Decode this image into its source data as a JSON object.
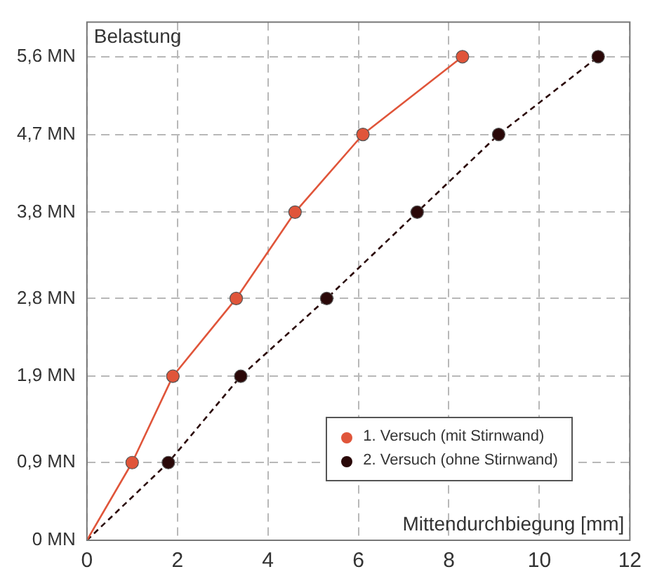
{
  "chart_data": {
    "type": "line",
    "ylabel": "Belastung",
    "xlabel": "Mittendurchbiegung [mm]",
    "series": [
      {
        "name": "1. Versuch (mit Stirnwand)",
        "color": "#e0553a",
        "line_style": "solid",
        "x": [
          0,
          1.0,
          1.9,
          3.3,
          4.6,
          6.1,
          8.3
        ],
        "values": [
          0,
          0.9,
          1.9,
          2.8,
          3.8,
          4.7,
          5.6
        ]
      },
      {
        "name": "2. Versuch (ohne Stirnwand)",
        "color": "#2a0808",
        "line_style": "dashed",
        "x": [
          0,
          1.8,
          3.4,
          5.3,
          7.3,
          9.1,
          11.3
        ],
        "values": [
          0,
          0.9,
          1.9,
          2.8,
          3.8,
          4.7,
          5.6
        ]
      }
    ],
    "xlim": [
      0,
      12
    ],
    "xticks": [
      0,
      2,
      4,
      6,
      8,
      10,
      12
    ],
    "ylim": [
      0,
      6.0
    ],
    "yticks": [
      {
        "value": 0,
        "label": "0 MN"
      },
      {
        "value": 0.9,
        "label": "0,9 MN"
      },
      {
        "value": 1.9,
        "label": "1,9 MN"
      },
      {
        "value": 2.8,
        "label": "2,8 MN"
      },
      {
        "value": 3.8,
        "label": "3,8 MN"
      },
      {
        "value": 4.7,
        "label": "4,7 MN"
      },
      {
        "value": 5.6,
        "label": "5,6 MN"
      }
    ],
    "grid": true,
    "legend": "bottom right",
    "marker": "circle"
  }
}
